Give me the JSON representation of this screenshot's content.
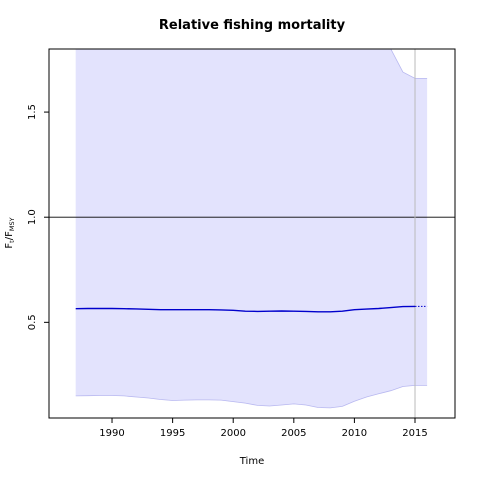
{
  "chart_data": {
    "type": "line",
    "title": "Relative fishing mortality",
    "xlabel": "Time",
    "ylabel": {
      "main": "F",
      "sub1": "t",
      "mid": "/F",
      "sub2": "MSY"
    },
    "xlim": [
      1984.8,
      2018.3
    ],
    "ylim": [
      0.045,
      1.8
    ],
    "x_ticks": [
      1990,
      1995,
      2000,
      2005,
      2010,
      2015
    ],
    "y_ticks": [
      0.5,
      1.0,
      1.5
    ],
    "x_tick_labels": [
      "1990",
      "1995",
      "2000",
      "2005",
      "2010",
      "2015"
    ],
    "y_tick_labels": [
      "0.5",
      "1.0",
      "1.5"
    ],
    "reference_line_y": 1.0,
    "vertical_line_x": 2015,
    "colors": {
      "estimate": "#0000cc",
      "band_fill": "#e3e3fd",
      "band_edge": "#b8b8f0",
      "reference": "#000000",
      "vertical": "#bbbbbb"
    },
    "series": [
      {
        "x": [
          1987,
          1988,
          1989,
          1990,
          1991,
          1992,
          1993,
          1994,
          1995,
          1996,
          1997,
          1998,
          1999,
          2000,
          2001,
          2002,
          2003,
          2004,
          2005,
          2006,
          2007,
          2008,
          2009,
          2010,
          2011,
          2012,
          2013,
          2014,
          2015
        ],
        "values": [
          0.565,
          0.566,
          0.566,
          0.566,
          0.565,
          0.564,
          0.562,
          0.56,
          0.56,
          0.56,
          0.56,
          0.56,
          0.559,
          0.557,
          0.553,
          0.552,
          0.553,
          0.554,
          0.553,
          0.552,
          0.55,
          0.55,
          0.553,
          0.56,
          0.563,
          0.566,
          0.57,
          0.575,
          0.576
        ]
      }
    ],
    "forecast": {
      "x": [
        2015,
        2016
      ],
      "values": [
        0.576,
        0.576
      ]
    },
    "band": {
      "x": [
        1987,
        1988,
        1989,
        1990,
        1991,
        1992,
        1993,
        1994,
        1995,
        1996,
        1997,
        1998,
        1999,
        2000,
        2001,
        2002,
        2003,
        2004,
        2005,
        2006,
        2007,
        2008,
        2009,
        2010,
        2011,
        2012,
        2013,
        2014,
        2015,
        2016
      ],
      "lower": [
        0.15,
        0.151,
        0.152,
        0.152,
        0.15,
        0.145,
        0.14,
        0.133,
        0.128,
        0.13,
        0.131,
        0.131,
        0.13,
        0.123,
        0.116,
        0.105,
        0.102,
        0.107,
        0.112,
        0.107,
        0.095,
        0.093,
        0.1,
        0.125,
        0.145,
        0.16,
        0.175,
        0.195,
        0.2,
        0.2
      ],
      "upper": [
        1.8,
        1.8,
        1.8,
        1.8,
        1.8,
        1.8,
        1.8,
        1.8,
        1.8,
        1.8,
        1.8,
        1.8,
        1.8,
        1.8,
        1.8,
        1.8,
        1.8,
        1.8,
        1.8,
        1.8,
        1.8,
        1.8,
        1.8,
        1.8,
        1.8,
        1.8,
        1.8,
        1.69,
        1.66,
        1.66
      ]
    }
  }
}
